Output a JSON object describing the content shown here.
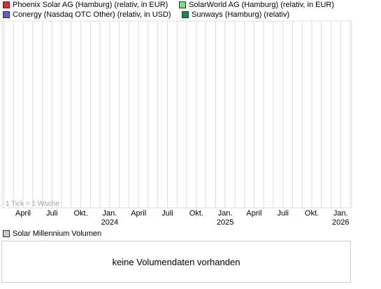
{
  "legend": [
    {
      "label": "Phoenix Solar AG (Hamburg) (relativ, in EUR)",
      "color": "#e8262b"
    },
    {
      "label": "SolarWorld AG (Hamburg) (relativ, in EUR)",
      "color": "#7be07b"
    },
    {
      "label": "Conergy (Nasdaq OTC Other) (relativ, in USD)",
      "color": "#5b5bd6"
    },
    {
      "label": "Sunways (Hamburg) (relativ)",
      "color": "#138a50"
    }
  ],
  "chart_data": {
    "type": "line",
    "title": "",
    "xlabel": "",
    "ylabel": "",
    "tick_note": "1 Tick = 1 Woche",
    "x_ticks": [
      {
        "label": "April",
        "year": ""
      },
      {
        "label": "Juli",
        "year": ""
      },
      {
        "label": "Okt.",
        "year": ""
      },
      {
        "label": "Jan.",
        "year": "2024"
      },
      {
        "label": "April",
        "year": ""
      },
      {
        "label": "Juli",
        "year": ""
      },
      {
        "label": "Okt.",
        "year": ""
      },
      {
        "label": "Jan.",
        "year": "2025"
      },
      {
        "label": "April",
        "year": ""
      },
      {
        "label": "Juli",
        "year": ""
      },
      {
        "label": "Okt.",
        "year": ""
      },
      {
        "label": "Jan.",
        "year": "2026"
      }
    ],
    "grid": true,
    "series": []
  },
  "volume": {
    "legend_label": "Solar Millennium Volumen",
    "legend_color": "#c8c8c8",
    "message": "keine Volumendaten vorhanden"
  }
}
